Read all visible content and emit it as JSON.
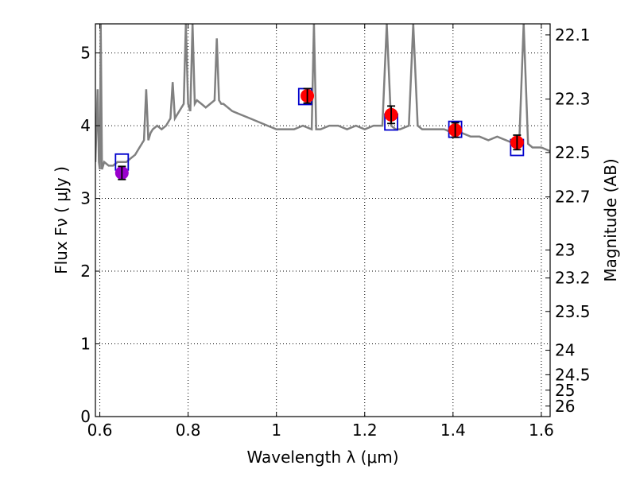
{
  "chart_data": {
    "type": "scatter",
    "xlabel": "Wavelength  λ (μm)",
    "ylabel": "Flux  Fν  ( μJy )",
    "y2label": "Magnitude (AB)",
    "xlim": [
      0.59,
      1.62
    ],
    "ylim": [
      0,
      5.4
    ],
    "grid": true,
    "x_ticks": [
      0.6,
      0.8,
      1.0,
      1.2,
      1.4,
      1.6
    ],
    "x_tick_labels": [
      "0.6",
      "0.8",
      "1",
      "1.2",
      "1.4",
      "1.6"
    ],
    "y_ticks": [
      0,
      1,
      2,
      3,
      4,
      5
    ],
    "y_tick_labels": [
      "0",
      "1",
      "2",
      "3",
      "4",
      "5"
    ],
    "y2_ticks": [
      22.1,
      22.3,
      22.5,
      22.7,
      23,
      23.2,
      23.5,
      24,
      24.5,
      25,
      26
    ],
    "y2_tick_labels": [
      "22.1",
      "22.3",
      "22.5",
      "22.7",
      "23",
      "23.2",
      "23.5",
      "24",
      "24.5",
      "25",
      "26"
    ],
    "colors": {
      "spectrum": "#808080",
      "observed": "#ff0000",
      "observed_first": "#9900cc",
      "model": "#0000cc",
      "error": "#000000"
    },
    "series": [
      {
        "name": "model spectrum",
        "kind": "line",
        "x": [
          0.59,
          0.595,
          0.598,
          0.6,
          0.602,
          0.605,
          0.61,
          0.62,
          0.63,
          0.64,
          0.65,
          0.66,
          0.67,
          0.68,
          0.69,
          0.7,
          0.705,
          0.71,
          0.715,
          0.72,
          0.73,
          0.74,
          0.75,
          0.76,
          0.765,
          0.77,
          0.78,
          0.79,
          0.795,
          0.8,
          0.805,
          0.81,
          0.815,
          0.82,
          0.83,
          0.84,
          0.85,
          0.86,
          0.865,
          0.87,
          0.875,
          0.88,
          0.9,
          0.92,
          0.94,
          0.96,
          0.98,
          1.0,
          1.02,
          1.04,
          1.06,
          1.08,
          1.085,
          1.09,
          1.1,
          1.12,
          1.14,
          1.16,
          1.18,
          1.2,
          1.22,
          1.24,
          1.25,
          1.26,
          1.27,
          1.28,
          1.3,
          1.31,
          1.32,
          1.33,
          1.34,
          1.36,
          1.38,
          1.4,
          1.42,
          1.44,
          1.46,
          1.48,
          1.5,
          1.52,
          1.54,
          1.55,
          1.56,
          1.57,
          1.58,
          1.6,
          1.62
        ],
        "y": [
          3.5,
          4.5,
          3.5,
          3.4,
          5.4,
          3.4,
          3.5,
          3.45,
          3.45,
          3.5,
          3.5,
          3.5,
          3.55,
          3.6,
          3.7,
          3.8,
          4.5,
          3.8,
          3.9,
          3.95,
          4.0,
          3.95,
          4.0,
          4.1,
          4.6,
          4.1,
          4.2,
          4.3,
          5.4,
          4.3,
          4.2,
          5.4,
          4.3,
          4.35,
          4.3,
          4.25,
          4.3,
          4.35,
          5.2,
          4.35,
          4.3,
          4.3,
          4.2,
          4.15,
          4.1,
          4.05,
          4.0,
          3.95,
          3.95,
          3.95,
          4.0,
          3.95,
          5.4,
          3.95,
          3.95,
          4.0,
          4.0,
          3.95,
          4.0,
          3.95,
          4.0,
          4.0,
          5.4,
          4.0,
          3.95,
          3.95,
          4.0,
          5.4,
          4.0,
          3.95,
          3.95,
          3.95,
          3.95,
          3.9,
          3.9,
          3.85,
          3.85,
          3.8,
          3.85,
          3.8,
          3.75,
          3.75,
          5.4,
          3.75,
          3.7,
          3.7,
          3.65
        ]
      },
      {
        "name": "observed",
        "kind": "points",
        "x": [
          0.65,
          1.07,
          1.26,
          1.405,
          1.545
        ],
        "y": [
          3.35,
          4.41,
          4.15,
          3.94,
          3.77
        ],
        "yerr": [
          0.09,
          0.1,
          0.12,
          0.1,
          0.1
        ]
      },
      {
        "name": "model photometry",
        "kind": "squares",
        "x": [
          0.65,
          1.065,
          1.26,
          1.405,
          1.545
        ],
        "y": [
          3.5,
          4.4,
          4.05,
          3.95,
          3.7
        ]
      }
    ]
  }
}
